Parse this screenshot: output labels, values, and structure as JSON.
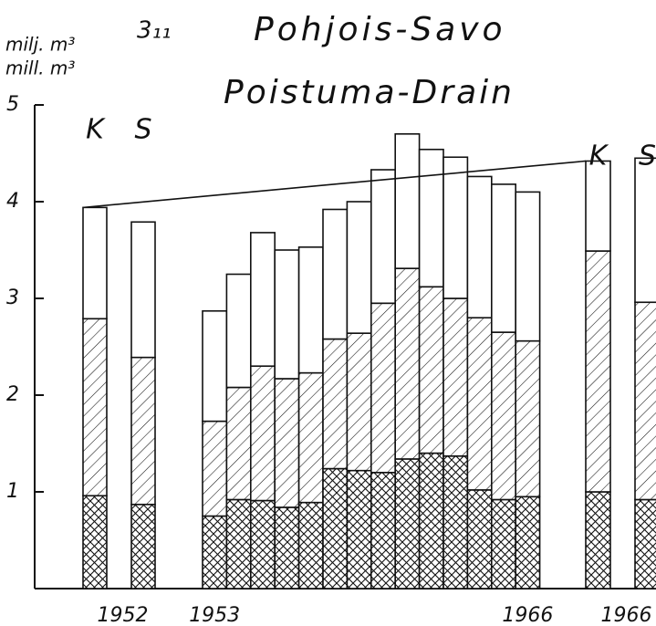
{
  "chart_data": {
    "type": "stacked_bar",
    "figure_number": "3₁₁",
    "title": "Pohjois-Savo",
    "subtitle": "Poistuma-Drain",
    "y_label_fi": "milj. m³",
    "y_label_en": "mill. m³",
    "ylim": [
      0,
      5
    ],
    "yticks": [
      1,
      2,
      3,
      4,
      5
    ],
    "categories": [
      "1952",
      null,
      "1953",
      null,
      null,
      null,
      null,
      null,
      null,
      null,
      null,
      null,
      null,
      null,
      null,
      "1966",
      "1966",
      null
    ],
    "bar_tags": [
      "K",
      "S",
      null,
      null,
      null,
      null,
      null,
      null,
      null,
      null,
      null,
      null,
      null,
      null,
      null,
      null,
      "K",
      "S"
    ],
    "series": [
      {
        "pattern": "crosshatch",
        "color": "#111111",
        "values": [
          0.96,
          0.87,
          0.75,
          0.92,
          0.91,
          0.84,
          0.89,
          1.24,
          1.22,
          1.2,
          1.34,
          1.4,
          1.37,
          1.02,
          0.92,
          0.95,
          1.0,
          0.92
        ]
      },
      {
        "pattern": "hatch",
        "color": "#111111",
        "values": [
          1.83,
          1.52,
          0.98,
          1.16,
          1.39,
          1.33,
          1.34,
          1.34,
          1.42,
          1.75,
          1.97,
          1.72,
          1.63,
          1.78,
          1.73,
          1.61,
          2.49,
          2.04
        ]
      },
      {
        "pattern": "none",
        "color": "#111111",
        "values": [
          1.15,
          1.4,
          1.14,
          1.17,
          1.38,
          1.33,
          1.3,
          1.34,
          1.36,
          1.38,
          1.39,
          1.42,
          1.46,
          1.46,
          1.53,
          1.54,
          0.93,
          1.49
        ]
      }
    ]
  }
}
